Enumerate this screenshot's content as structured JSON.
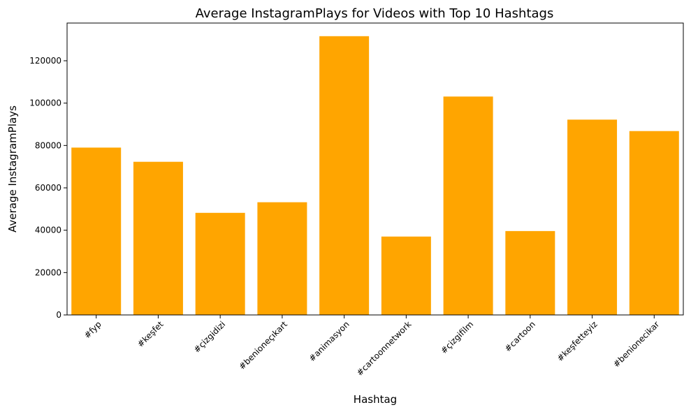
{
  "chart_data": {
    "type": "bar",
    "title": "Average InstagramPlays for Videos with Top 10 Hashtags",
    "xlabel": "Hashtag",
    "ylabel": "Average InstagramPlays",
    "categories": [
      "#fyp",
      "#keşfet",
      "#çizgidizi",
      "#benioneçıkart",
      "#animasyon",
      "#cartoonnetwork",
      "#çizgifilm",
      "#cartoon",
      "#keşfetteyiz",
      "#benionecikar"
    ],
    "values": [
      79000,
      72300,
      48200,
      53200,
      131600,
      37000,
      103100,
      39600,
      92200,
      86800
    ],
    "ylim": [
      0,
      137800
    ],
    "yticks": [
      0,
      20000,
      40000,
      60000,
      80000,
      100000,
      120000
    ],
    "ytick_labels": [
      "0",
      "20000",
      "40000",
      "60000",
      "80000",
      "100000",
      "120000"
    ],
    "bar_color": "#ffa500",
    "grid": false,
    "legend": "none"
  }
}
